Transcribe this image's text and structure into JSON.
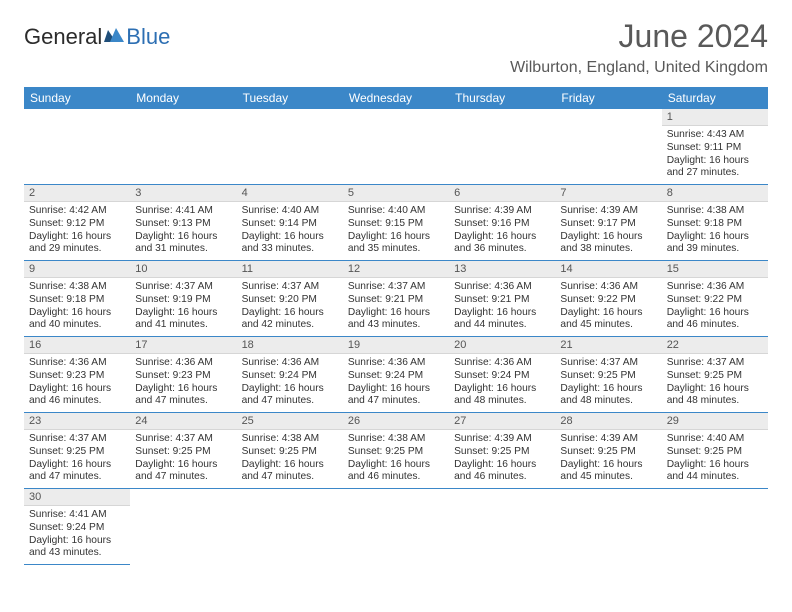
{
  "brand": {
    "part1": "General",
    "part2": "Blue"
  },
  "title": "June 2024",
  "location": "Wilburton, England, United Kingdom",
  "colors": {
    "header_bg": "#3b87c8",
    "header_text": "#ffffff",
    "daynum_bg": "#ececec",
    "rule": "#3b87c8",
    "title_color": "#595959"
  },
  "weekdays": [
    "Sunday",
    "Monday",
    "Tuesday",
    "Wednesday",
    "Thursday",
    "Friday",
    "Saturday"
  ],
  "weeks": [
    [
      null,
      null,
      null,
      null,
      null,
      null,
      {
        "n": "1",
        "sr": "4:43 AM",
        "ss": "9:11 PM",
        "dl": "16 hours and 27 minutes."
      }
    ],
    [
      {
        "n": "2",
        "sr": "4:42 AM",
        "ss": "9:12 PM",
        "dl": "16 hours and 29 minutes."
      },
      {
        "n": "3",
        "sr": "4:41 AM",
        "ss": "9:13 PM",
        "dl": "16 hours and 31 minutes."
      },
      {
        "n": "4",
        "sr": "4:40 AM",
        "ss": "9:14 PM",
        "dl": "16 hours and 33 minutes."
      },
      {
        "n": "5",
        "sr": "4:40 AM",
        "ss": "9:15 PM",
        "dl": "16 hours and 35 minutes."
      },
      {
        "n": "6",
        "sr": "4:39 AM",
        "ss": "9:16 PM",
        "dl": "16 hours and 36 minutes."
      },
      {
        "n": "7",
        "sr": "4:39 AM",
        "ss": "9:17 PM",
        "dl": "16 hours and 38 minutes."
      },
      {
        "n": "8",
        "sr": "4:38 AM",
        "ss": "9:18 PM",
        "dl": "16 hours and 39 minutes."
      }
    ],
    [
      {
        "n": "9",
        "sr": "4:38 AM",
        "ss": "9:18 PM",
        "dl": "16 hours and 40 minutes."
      },
      {
        "n": "10",
        "sr": "4:37 AM",
        "ss": "9:19 PM",
        "dl": "16 hours and 41 minutes."
      },
      {
        "n": "11",
        "sr": "4:37 AM",
        "ss": "9:20 PM",
        "dl": "16 hours and 42 minutes."
      },
      {
        "n": "12",
        "sr": "4:37 AM",
        "ss": "9:21 PM",
        "dl": "16 hours and 43 minutes."
      },
      {
        "n": "13",
        "sr": "4:36 AM",
        "ss": "9:21 PM",
        "dl": "16 hours and 44 minutes."
      },
      {
        "n": "14",
        "sr": "4:36 AM",
        "ss": "9:22 PM",
        "dl": "16 hours and 45 minutes."
      },
      {
        "n": "15",
        "sr": "4:36 AM",
        "ss": "9:22 PM",
        "dl": "16 hours and 46 minutes."
      }
    ],
    [
      {
        "n": "16",
        "sr": "4:36 AM",
        "ss": "9:23 PM",
        "dl": "16 hours and 46 minutes."
      },
      {
        "n": "17",
        "sr": "4:36 AM",
        "ss": "9:23 PM",
        "dl": "16 hours and 47 minutes."
      },
      {
        "n": "18",
        "sr": "4:36 AM",
        "ss": "9:24 PM",
        "dl": "16 hours and 47 minutes."
      },
      {
        "n": "19",
        "sr": "4:36 AM",
        "ss": "9:24 PM",
        "dl": "16 hours and 47 minutes."
      },
      {
        "n": "20",
        "sr": "4:36 AM",
        "ss": "9:24 PM",
        "dl": "16 hours and 48 minutes."
      },
      {
        "n": "21",
        "sr": "4:37 AM",
        "ss": "9:25 PM",
        "dl": "16 hours and 48 minutes."
      },
      {
        "n": "22",
        "sr": "4:37 AM",
        "ss": "9:25 PM",
        "dl": "16 hours and 48 minutes."
      }
    ],
    [
      {
        "n": "23",
        "sr": "4:37 AM",
        "ss": "9:25 PM",
        "dl": "16 hours and 47 minutes."
      },
      {
        "n": "24",
        "sr": "4:37 AM",
        "ss": "9:25 PM",
        "dl": "16 hours and 47 minutes."
      },
      {
        "n": "25",
        "sr": "4:38 AM",
        "ss": "9:25 PM",
        "dl": "16 hours and 47 minutes."
      },
      {
        "n": "26",
        "sr": "4:38 AM",
        "ss": "9:25 PM",
        "dl": "16 hours and 46 minutes."
      },
      {
        "n": "27",
        "sr": "4:39 AM",
        "ss": "9:25 PM",
        "dl": "16 hours and 46 minutes."
      },
      {
        "n": "28",
        "sr": "4:39 AM",
        "ss": "9:25 PM",
        "dl": "16 hours and 45 minutes."
      },
      {
        "n": "29",
        "sr": "4:40 AM",
        "ss": "9:25 PM",
        "dl": "16 hours and 44 minutes."
      }
    ],
    [
      {
        "n": "30",
        "sr": "4:41 AM",
        "ss": "9:24 PM",
        "dl": "16 hours and 43 minutes."
      },
      null,
      null,
      null,
      null,
      null,
      null
    ]
  ],
  "labels": {
    "sunrise": "Sunrise:",
    "sunset": "Sunset:",
    "daylight": "Daylight:"
  }
}
